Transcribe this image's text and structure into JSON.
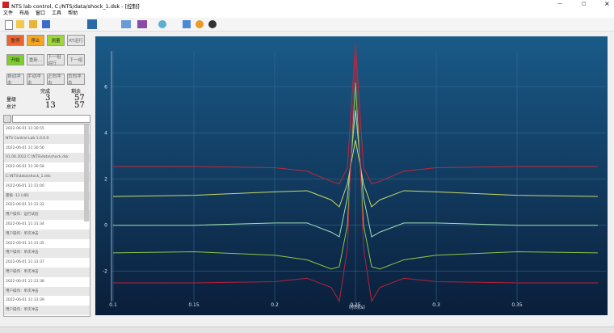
{
  "window": {
    "title": "NTS lab control, C:/NTS/data/shock_1.dsk - [控制]"
  },
  "menu": [
    "文件",
    "布局",
    "窗口",
    "工具",
    "帮助"
  ],
  "buttons": [
    {
      "label": "暂停",
      "color": "#f0632a"
    },
    {
      "label": "停止",
      "color": "#f5a623"
    },
    {
      "label": "测量",
      "color": "#9fd63a"
    },
    {
      "label": "RT运行",
      "color": "#e4e4e4"
    },
    {
      "label": "开始",
      "color": "#7ccf2e"
    },
    {
      "label": "重新...",
      "color": "#e4e4e4"
    },
    {
      "label": "下一组运行",
      "color": "#e4e4e4"
    },
    {
      "label": "下一组",
      "color": "#e4e4e4"
    },
    {
      "label": "自动冲击",
      "color": "#e4e4e4"
    },
    {
      "label": "手动冲击",
      "color": "#e4e4e4"
    },
    {
      "label": "正向冲击",
      "color": "#e4e4e4"
    },
    {
      "label": "负向冲击",
      "color": "#e4e4e4"
    }
  ],
  "counters": {
    "headers": [
      "完成",
      "剩余"
    ],
    "rows": [
      {
        "label": "量级",
        "done": 3,
        "remaining": 57
      },
      {
        "label": "总计",
        "done": 13,
        "remaining": 57
      }
    ]
  },
  "log": [
    "2022-06-01 11:30:55",
    "NTS Control Lab 1.0.0.0",
    "2022-06-01 11:30:56",
    "01.06.2022 C:\\NTS\\data\\shock.dsk",
    "2022-06-01 11:30:58",
    "C:\\NTS\\data\\shock_1.dsk",
    "2022-06-01 11:31:00",
    "量级            -12 [dB]",
    "2022-06-01 11:31:32",
    "用户操作：运行试验",
    "2022-06-01 11:31:34",
    "用户操作：单次冲击",
    "2022-06-01 11:31:35",
    "用户操作：单次冲击",
    "2022-06-01 11:31:37",
    "用户操作：单次冲击",
    "2022-06-01 11:31:38",
    "用户操作：单次冲击",
    "2022-06-01 11:31:39",
    "用户操作：单次冲击"
  ],
  "chart_data": {
    "type": "line",
    "x_label": "时间(s)",
    "x": [
      0.1,
      0.15,
      0.2,
      0.22,
      0.235,
      0.24,
      0.245,
      0.25,
      0.255,
      0.26,
      0.265,
      0.28,
      0.3,
      0.35,
      0.4
    ],
    "series": [
      {
        "color": "#c0283a",
        "values": [
          2.55,
          2.55,
          2.5,
          2.35,
          1.9,
          1.8,
          2.5,
          7.9,
          2.5,
          1.8,
          1.9,
          2.35,
          2.5,
          2.55,
          2.55
        ]
      },
      {
        "color": "#c8d86a",
        "values": [
          1.25,
          1.3,
          1.45,
          1.5,
          1.1,
          0.8,
          1.8,
          3.7,
          1.8,
          0.8,
          1.1,
          1.5,
          1.45,
          1.3,
          1.25
        ]
      },
      {
        "color": "#9ee0b0",
        "values": [
          0,
          0,
          0.1,
          0.1,
          -0.3,
          -0.5,
          1.2,
          5.0,
          1.2,
          -0.5,
          -0.3,
          0.1,
          0.1,
          0,
          0
        ]
      },
      {
        "color": "#8cc84a",
        "values": [
          -1.2,
          -1.15,
          -1.3,
          -1.5,
          -1.9,
          -1.8,
          0,
          6.2,
          0,
          -1.8,
          -1.9,
          -1.5,
          -1.3,
          -1.15,
          -1.2
        ]
      },
      {
        "color": "#b8223a",
        "values": [
          -2.5,
          -2.5,
          -2.45,
          -2.3,
          -2.7,
          -3.3,
          -1,
          7.9,
          -1,
          -3.3,
          -2.7,
          -2.3,
          -2.45,
          -2.5,
          -2.5
        ]
      }
    ],
    "xlim": [
      0.09,
      0.405
    ],
    "ylim": [
      -3.8,
      8.2
    ],
    "xticks": [
      0.1,
      0.15,
      0.2,
      0.25,
      0.3,
      0.35
    ],
    "yticks": [
      -2,
      0,
      2,
      4,
      6
    ],
    "grid": true
  }
}
